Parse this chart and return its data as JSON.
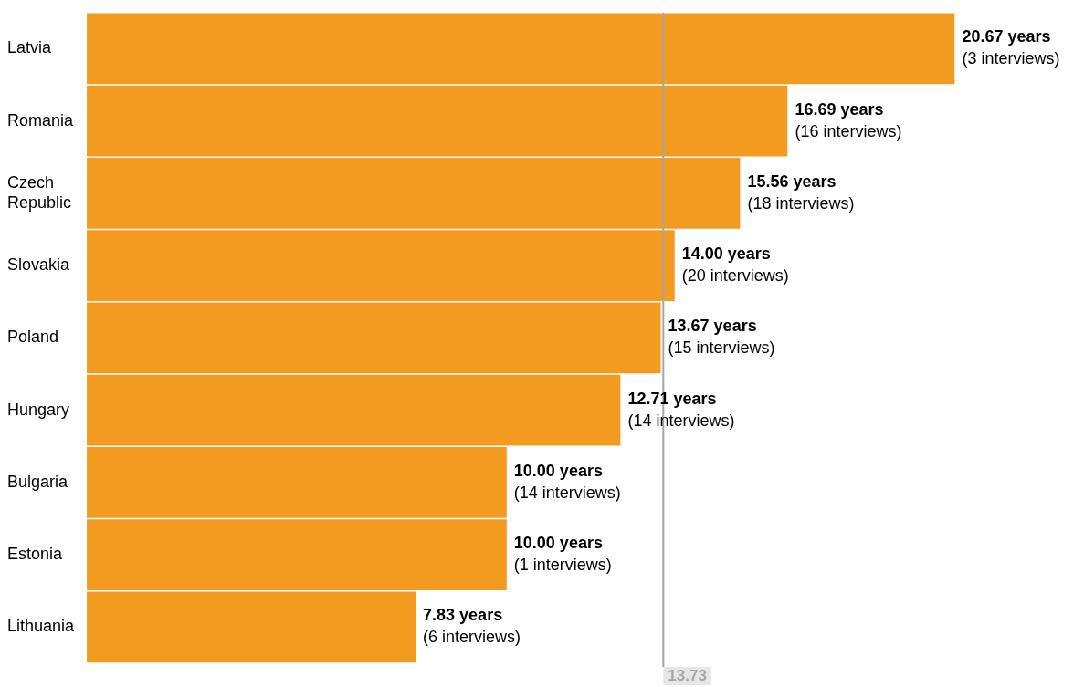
{
  "chart_data": {
    "type": "bar",
    "orientation": "horizontal",
    "categories": [
      "Latvia",
      "Romania",
      "Czech Republic",
      "Slovakia",
      "Poland",
      "Hungary",
      "Bulgaria",
      "Estonia",
      "Lithuania"
    ],
    "values": [
      20.67,
      16.69,
      15.56,
      14.0,
      13.67,
      12.71,
      10.0,
      10.0,
      7.83
    ],
    "value_labels": [
      "20.67 years\n(3 interviews)",
      "16.69 years\n(16 interviews)",
      "15.56 years\n(18 interviews)",
      "14.00 years\n(20 interviews)",
      "13.67 years\n(15 interviews)",
      "12.71 years\n(14 interviews)",
      "10.00 years\n(14 interviews)",
      "10.00 years\n(1 interviews)",
      "7.83 years\n(6 interviews)"
    ],
    "color": "#f39a21",
    "legend": false,
    "ref_lines": [
      {
        "axis": "x",
        "value": 13.73,
        "label": "13.73",
        "color": "#a6a6a6"
      }
    ]
  }
}
